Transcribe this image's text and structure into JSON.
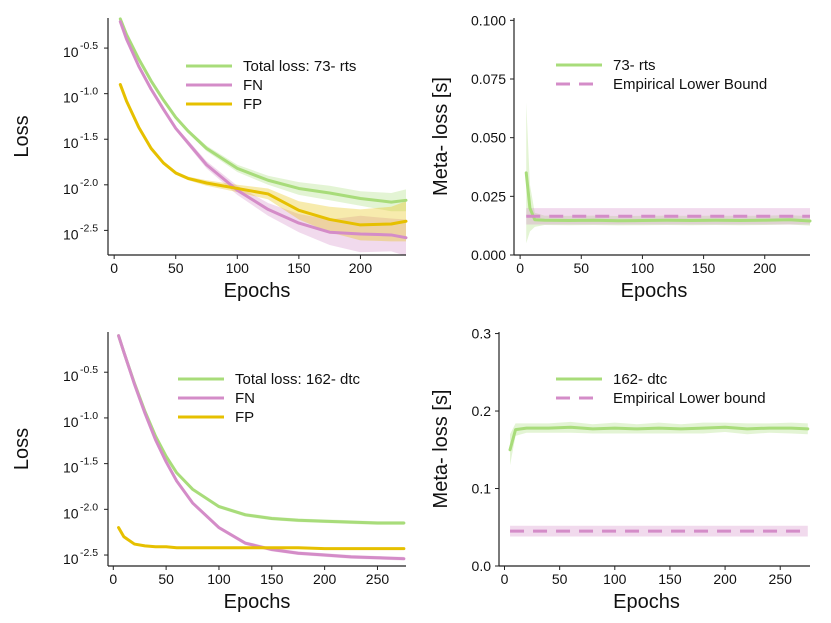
{
  "colors": {
    "green": "#a8dc7a",
    "pink": "#d48cc8",
    "yellow": "#e6c000",
    "axis": "#222222"
  },
  "chart_data": [
    {
      "id": "top-left",
      "type": "line",
      "title": "",
      "xlabel": "Epochs",
      "ylabel": "Loss",
      "yscale": "log10",
      "xlim": [
        -5,
        237
      ],
      "ylim": [
        -2.77,
        -0.17
      ],
      "xticks": [
        0,
        50,
        100,
        150,
        200
      ],
      "xtick_labels": [
        "0",
        "50",
        "100",
        "150",
        "200"
      ],
      "yticks": [
        -0.5,
        -1.0,
        -1.5,
        -2.0,
        -2.5
      ],
      "ytick_labels": [
        "10",
        "10",
        "10",
        "10",
        "10"
      ],
      "ytick_exponents": [
        "-0.5",
        "-1.0",
        "-1.5",
        "-2.0",
        "-2.5"
      ],
      "legend_position": "top-right",
      "series": [
        {
          "name": "Total loss: 73- rts",
          "color": "green",
          "style": "solid",
          "x": [
            5,
            10,
            20,
            30,
            40,
            50,
            60,
            75,
            100,
            125,
            150,
            175,
            200,
            225,
            237
          ],
          "y": [
            -0.18,
            -0.35,
            -0.62,
            -0.86,
            -1.07,
            -1.26,
            -1.41,
            -1.6,
            -1.82,
            -1.95,
            -2.04,
            -2.09,
            -2.15,
            -2.19,
            -2.17
          ],
          "band": [
            0.02,
            0.02,
            0.02,
            0.02,
            0.02,
            0.02,
            0.02,
            0.03,
            0.04,
            0.05,
            0.07,
            0.08,
            0.08,
            0.1,
            0.12
          ]
        },
        {
          "name": "FN",
          "color": "pink",
          "style": "solid",
          "x": [
            5,
            10,
            20,
            30,
            40,
            50,
            60,
            75,
            100,
            125,
            150,
            175,
            200,
            225,
            237
          ],
          "y": [
            -0.21,
            -0.4,
            -0.7,
            -0.95,
            -1.17,
            -1.38,
            -1.54,
            -1.78,
            -2.06,
            -2.27,
            -2.42,
            -2.52,
            -2.54,
            -2.55,
            -2.58
          ],
          "band": [
            0.02,
            0.02,
            0.02,
            0.02,
            0.02,
            0.02,
            0.03,
            0.04,
            0.05,
            0.07,
            0.1,
            0.14,
            0.2,
            0.18,
            0.2
          ]
        },
        {
          "name": "FP",
          "color": "yellow",
          "style": "solid",
          "x": [
            5,
            10,
            20,
            30,
            40,
            50,
            60,
            75,
            100,
            125,
            150,
            175,
            200,
            225,
            237
          ],
          "y": [
            -0.9,
            -1.08,
            -1.37,
            -1.6,
            -1.76,
            -1.87,
            -1.93,
            -1.98,
            -2.04,
            -2.1,
            -2.28,
            -2.38,
            -2.44,
            -2.43,
            -2.4
          ],
          "band": [
            0.02,
            0.02,
            0.02,
            0.02,
            0.02,
            0.02,
            0.02,
            0.03,
            0.04,
            0.06,
            0.1,
            0.14,
            0.17,
            0.19,
            0.22
          ]
        }
      ]
    },
    {
      "id": "top-right",
      "type": "line",
      "title": "",
      "xlabel": "Epochs",
      "ylabel": "Meta- loss [s]",
      "yscale": "linear",
      "xlim": [
        -5,
        237
      ],
      "ylim": [
        0.0,
        0.101
      ],
      "xticks": [
        0,
        50,
        100,
        150,
        200
      ],
      "xtick_labels": [
        "0",
        "50",
        "100",
        "150",
        "200"
      ],
      "yticks": [
        0.0,
        0.025,
        0.05,
        0.075,
        0.1
      ],
      "ytick_labels": [
        "0.000",
        "0.025",
        "0.050",
        "0.075",
        "0.100"
      ],
      "legend_position": "top-right",
      "series": [
        {
          "name": "73- rts",
          "color": "green",
          "style": "solid",
          "x": [
            5,
            8,
            12,
            20,
            40,
            60,
            80,
            100,
            120,
            140,
            160,
            180,
            200,
            220,
            237
          ],
          "y": [
            0.035,
            0.02,
            0.015,
            0.0148,
            0.0147,
            0.0148,
            0.0146,
            0.0147,
            0.0148,
            0.0147,
            0.0148,
            0.0147,
            0.0148,
            0.015,
            0.0145
          ],
          "band": [
            0.03,
            0.01,
            0.003,
            0.002,
            0.002,
            0.002,
            0.002,
            0.002,
            0.002,
            0.002,
            0.002,
            0.002,
            0.002,
            0.002,
            0.002
          ]
        },
        {
          "name": "Empirical Lower Bound",
          "color": "pink",
          "style": "dashed",
          "x": [
            5,
            237
          ],
          "y": [
            0.0165,
            0.0165
          ],
          "band": [
            0.0035,
            0.0035
          ]
        }
      ]
    },
    {
      "id": "bottom-left",
      "type": "line",
      "title": "",
      "xlabel": "Epochs",
      "ylabel": "Loss",
      "yscale": "log10",
      "xlim": [
        -5,
        277
      ],
      "ylim": [
        -2.62,
        -0.06
      ],
      "xticks": [
        0,
        50,
        100,
        150,
        200,
        250
      ],
      "xtick_labels": [
        "0",
        "50",
        "100",
        "150",
        "200",
        "250"
      ],
      "yticks": [
        -0.5,
        -1.0,
        -1.5,
        -2.0,
        -2.5
      ],
      "ytick_labels": [
        "10",
        "10",
        "10",
        "10",
        "10"
      ],
      "ytick_exponents": [
        "-0.5",
        "-1.0",
        "-1.5",
        "-2.0",
        "-2.5"
      ],
      "legend_position": "top-right",
      "series": [
        {
          "name": "Total loss: 162- dtc",
          "color": "green",
          "style": "solid",
          "x": [
            5,
            10,
            20,
            30,
            40,
            50,
            60,
            75,
            100,
            125,
            150,
            175,
            200,
            225,
            250,
            275
          ],
          "y": [
            -0.1,
            -0.28,
            -0.62,
            -0.93,
            -1.2,
            -1.42,
            -1.6,
            -1.78,
            -1.97,
            -2.06,
            -2.1,
            -2.12,
            -2.13,
            -2.14,
            -2.15,
            -2.15
          ],
          "band": [
            0.01,
            0.01,
            0.01,
            0.01,
            0.01,
            0.01,
            0.01,
            0.01,
            0.02,
            0.02,
            0.02,
            0.02,
            0.02,
            0.02,
            0.02,
            0.02
          ]
        },
        {
          "name": "FN",
          "color": "pink",
          "style": "solid",
          "x": [
            5,
            10,
            20,
            30,
            40,
            50,
            60,
            75,
            100,
            125,
            150,
            175,
            200,
            225,
            250,
            275
          ],
          "y": [
            -0.1,
            -0.28,
            -0.63,
            -0.95,
            -1.24,
            -1.48,
            -1.69,
            -1.93,
            -2.2,
            -2.37,
            -2.44,
            -2.48,
            -2.5,
            -2.52,
            -2.53,
            -2.54
          ],
          "band": [
            0.01,
            0.01,
            0.01,
            0.01,
            0.01,
            0.01,
            0.01,
            0.01,
            0.02,
            0.02,
            0.02,
            0.02,
            0.02,
            0.02,
            0.02,
            0.02
          ]
        },
        {
          "name": "FP",
          "color": "yellow",
          "style": "solid",
          "x": [
            5,
            10,
            20,
            30,
            40,
            50,
            60,
            75,
            100,
            125,
            150,
            175,
            200,
            225,
            250,
            275
          ],
          "y": [
            -2.2,
            -2.3,
            -2.38,
            -2.4,
            -2.41,
            -2.41,
            -2.42,
            -2.42,
            -2.42,
            -2.42,
            -2.42,
            -2.42,
            -2.43,
            -2.43,
            -2.43,
            -2.43
          ],
          "band": [
            0.01,
            0.01,
            0.01,
            0.01,
            0.01,
            0.01,
            0.01,
            0.01,
            0.01,
            0.01,
            0.01,
            0.01,
            0.01,
            0.01,
            0.01,
            0.01
          ]
        }
      ]
    },
    {
      "id": "bottom-right",
      "type": "line",
      "title": "",
      "xlabel": "Epochs",
      "ylabel": "Meta- loss [s]",
      "yscale": "linear",
      "xlim": [
        -5,
        277
      ],
      "ylim": [
        0.0,
        0.302
      ],
      "xticks": [
        0,
        50,
        100,
        150,
        200,
        250
      ],
      "xtick_labels": [
        "0",
        "50",
        "100",
        "150",
        "200",
        "250"
      ],
      "yticks": [
        0.0,
        0.1,
        0.2,
        0.3
      ],
      "ytick_labels": [
        "0.0",
        "0.1",
        "0.2",
        "0.3"
      ],
      "legend_position": "top-right",
      "series": [
        {
          "name": "162- dtc",
          "color": "green",
          "style": "solid",
          "x": [
            5,
            10,
            20,
            40,
            60,
            80,
            100,
            120,
            140,
            160,
            180,
            200,
            220,
            240,
            260,
            275
          ],
          "y": [
            0.15,
            0.176,
            0.178,
            0.178,
            0.179,
            0.177,
            0.178,
            0.177,
            0.178,
            0.177,
            0.178,
            0.179,
            0.177,
            0.178,
            0.178,
            0.177
          ],
          "band": [
            0.02,
            0.008,
            0.006,
            0.006,
            0.007,
            0.006,
            0.007,
            0.006,
            0.007,
            0.006,
            0.007,
            0.006,
            0.007,
            0.006,
            0.007,
            0.007
          ]
        },
        {
          "name": "Empirical Lower bound",
          "color": "pink",
          "style": "dashed",
          "x": [
            5,
            275
          ],
          "y": [
            0.045,
            0.045
          ],
          "band": [
            0.007,
            0.007
          ]
        }
      ]
    }
  ]
}
